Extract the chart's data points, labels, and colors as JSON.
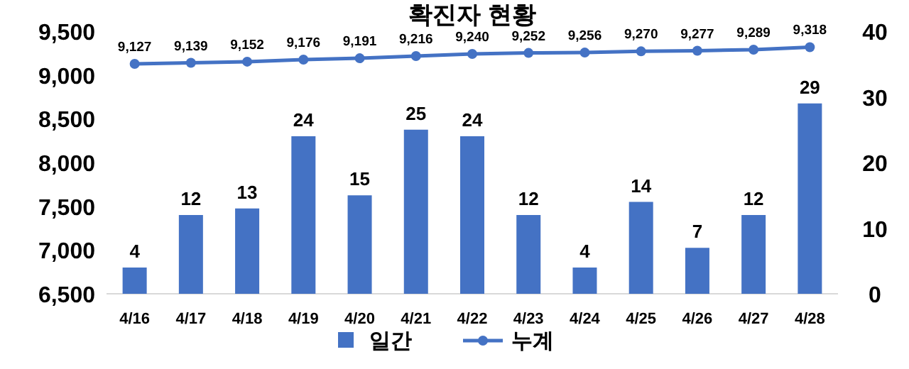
{
  "chart_data": {
    "type": "bar",
    "title": "확진자 현황",
    "categories": [
      "4/16",
      "4/17",
      "4/18",
      "4/19",
      "4/20",
      "4/21",
      "4/22",
      "4/23",
      "4/24",
      "4/25",
      "4/26",
      "4/27",
      "4/28"
    ],
    "series": [
      {
        "name": "일간",
        "axis": "y2",
        "color": "#4472c4",
        "values": [
          4,
          12,
          13,
          24,
          15,
          25,
          24,
          12,
          4,
          14,
          7,
          12,
          29
        ],
        "value_labels": [
          "4",
          "12",
          "13",
          "24",
          "15",
          "25",
          "24",
          "12",
          "4",
          "14",
          "7",
          "12",
          "29"
        ]
      },
      {
        "name": "누계",
        "type": "line",
        "axis": "y",
        "color": "#4472c4",
        "marker": "circle",
        "values": [
          9127,
          9139,
          9152,
          9176,
          9191,
          9216,
          9240,
          9252,
          9256,
          9270,
          9277,
          9289,
          9318
        ],
        "value_labels": [
          "9,127",
          "9,139",
          "9,152",
          "9,176",
          "9,191",
          "9,216",
          "9,240",
          "9,252",
          "9,256",
          "9,270",
          "9,277",
          "9,289",
          "9,318"
        ]
      }
    ],
    "ylim": [
      6500,
      9500
    ],
    "yticks": [
      {
        "value": 6500,
        "label": "6,500"
      },
      {
        "value": 7000,
        "label": "7,000"
      },
      {
        "value": 7500,
        "label": "7,500"
      },
      {
        "value": 8000,
        "label": "8,000"
      },
      {
        "value": 8500,
        "label": "8,500"
      },
      {
        "value": 9000,
        "label": "9,000"
      },
      {
        "value": 9500,
        "label": "9,500"
      }
    ],
    "y2lim": [
      0,
      40
    ],
    "y2ticks": [
      0,
      10,
      20,
      30,
      40
    ],
    "legend": "bottom",
    "grid": false
  }
}
